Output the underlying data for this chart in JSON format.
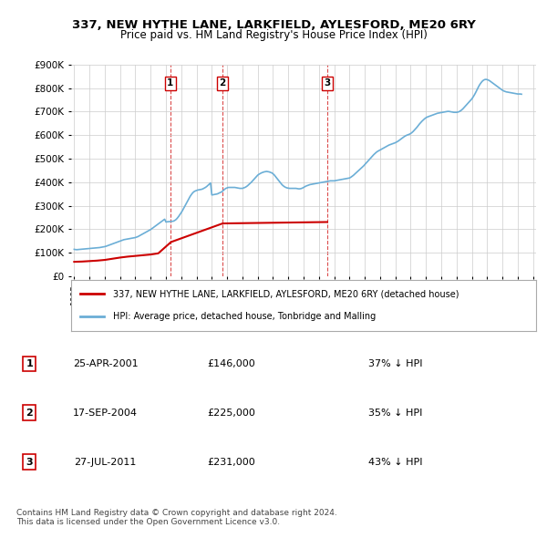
{
  "title": "337, NEW HYTHE LANE, LARKFIELD, AYLESFORD, ME20 6RY",
  "subtitle": "Price paid vs. HM Land Registry's House Price Index (HPI)",
  "hpi_label": "HPI: Average price, detached house, Tonbridge and Malling",
  "property_label": "337, NEW HYTHE LANE, LARKFIELD, AYLESFORD, ME20 6RY (detached house)",
  "hpi_color": "#6baed6",
  "property_color": "#cc0000",
  "vline_color": "#cc0000",
  "background_color": "#ffffff",
  "grid_color": "#cccccc",
  "ylim": [
    0,
    900000
  ],
  "yticks": [
    0,
    100000,
    200000,
    300000,
    400000,
    500000,
    600000,
    700000,
    800000,
    900000
  ],
  "ytick_labels": [
    "£0",
    "£100K",
    "£200K",
    "£300K",
    "£400K",
    "£500K",
    "£600K",
    "£700K",
    "£800K",
    "£900K"
  ],
  "sale_dates": [
    "2001-04-25",
    "2004-09-17",
    "2011-07-27"
  ],
  "sale_prices": [
    146000,
    225000,
    231000
  ],
  "sale_labels": [
    "1",
    "2",
    "3"
  ],
  "sale_info": [
    {
      "label": "1",
      "date": "25-APR-2001",
      "price": "£146,000",
      "pct": "37% ↓ HPI"
    },
    {
      "label": "2",
      "date": "17-SEP-2004",
      "price": "£225,000",
      "pct": "35% ↓ HPI"
    },
    {
      "label": "3",
      "date": "27-JUL-2011",
      "price": "£231,000",
      "pct": "43% ↓ HPI"
    }
  ],
  "footer": "Contains HM Land Registry data © Crown copyright and database right 2024.\nThis data is licensed under the Open Government Licence v3.0.",
  "hpi_years": [
    1995.0,
    1995.083,
    1995.167,
    1995.25,
    1995.333,
    1995.417,
    1995.5,
    1995.583,
    1995.667,
    1995.75,
    1995.833,
    1995.917,
    1996.0,
    1996.083,
    1996.167,
    1996.25,
    1996.333,
    1996.417,
    1996.5,
    1996.583,
    1996.667,
    1996.75,
    1996.833,
    1996.917,
    1997.0,
    1997.083,
    1997.167,
    1997.25,
    1997.333,
    1997.417,
    1997.5,
    1997.583,
    1997.667,
    1997.75,
    1997.833,
    1997.917,
    1998.0,
    1998.083,
    1998.167,
    1998.25,
    1998.333,
    1998.417,
    1998.5,
    1998.583,
    1998.667,
    1998.75,
    1998.833,
    1998.917,
    1999.0,
    1999.083,
    1999.167,
    1999.25,
    1999.333,
    1999.417,
    1999.5,
    1999.583,
    1999.667,
    1999.75,
    1999.833,
    1999.917,
    2000.0,
    2000.083,
    2000.167,
    2000.25,
    2000.333,
    2000.417,
    2000.5,
    2000.583,
    2000.667,
    2000.75,
    2000.833,
    2000.917,
    2001.0,
    2001.083,
    2001.167,
    2001.25,
    2001.333,
    2001.417,
    2001.5,
    2001.583,
    2001.667,
    2001.75,
    2001.833,
    2001.917,
    2002.0,
    2002.083,
    2002.167,
    2002.25,
    2002.333,
    2002.417,
    2002.5,
    2002.583,
    2002.667,
    2002.75,
    2002.833,
    2002.917,
    2003.0,
    2003.083,
    2003.167,
    2003.25,
    2003.333,
    2003.417,
    2003.5,
    2003.583,
    2003.667,
    2003.75,
    2003.833,
    2003.917,
    2004.0,
    2004.083,
    2004.167,
    2004.25,
    2004.333,
    2004.417,
    2004.5,
    2004.583,
    2004.667,
    2004.75,
    2004.833,
    2004.917,
    2005.0,
    2005.083,
    2005.167,
    2005.25,
    2005.333,
    2005.417,
    2005.5,
    2005.583,
    2005.667,
    2005.75,
    2005.833,
    2005.917,
    2006.0,
    2006.083,
    2006.167,
    2006.25,
    2006.333,
    2006.417,
    2006.5,
    2006.583,
    2006.667,
    2006.75,
    2006.833,
    2006.917,
    2007.0,
    2007.083,
    2007.167,
    2007.25,
    2007.333,
    2007.417,
    2007.5,
    2007.583,
    2007.667,
    2007.75,
    2007.833,
    2007.917,
    2008.0,
    2008.083,
    2008.167,
    2008.25,
    2008.333,
    2008.417,
    2008.5,
    2008.583,
    2008.667,
    2008.75,
    2008.833,
    2008.917,
    2009.0,
    2009.083,
    2009.167,
    2009.25,
    2009.333,
    2009.417,
    2009.5,
    2009.583,
    2009.667,
    2009.75,
    2009.833,
    2009.917,
    2010.0,
    2010.083,
    2010.167,
    2010.25,
    2010.333,
    2010.417,
    2010.5,
    2010.583,
    2010.667,
    2010.75,
    2010.833,
    2010.917,
    2011.0,
    2011.083,
    2011.167,
    2011.25,
    2011.333,
    2011.417,
    2011.5,
    2011.583,
    2011.667,
    2011.75,
    2011.833,
    2011.917,
    2012.0,
    2012.083,
    2012.167,
    2012.25,
    2012.333,
    2012.417,
    2012.5,
    2012.583,
    2012.667,
    2012.75,
    2012.833,
    2012.917,
    2013.0,
    2013.083,
    2013.167,
    2013.25,
    2013.333,
    2013.417,
    2013.5,
    2013.583,
    2013.667,
    2013.75,
    2013.833,
    2013.917,
    2014.0,
    2014.083,
    2014.167,
    2014.25,
    2014.333,
    2014.417,
    2014.5,
    2014.583,
    2014.667,
    2014.75,
    2014.833,
    2014.917,
    2015.0,
    2015.083,
    2015.167,
    2015.25,
    2015.333,
    2015.417,
    2015.5,
    2015.583,
    2015.667,
    2015.75,
    2015.833,
    2015.917,
    2016.0,
    2016.083,
    2016.167,
    2016.25,
    2016.333,
    2016.417,
    2016.5,
    2016.583,
    2016.667,
    2016.75,
    2016.833,
    2016.917,
    2017.0,
    2017.083,
    2017.167,
    2017.25,
    2017.333,
    2017.417,
    2017.5,
    2017.583,
    2017.667,
    2017.75,
    2017.833,
    2017.917,
    2018.0,
    2018.083,
    2018.167,
    2018.25,
    2018.333,
    2018.417,
    2018.5,
    2018.583,
    2018.667,
    2018.75,
    2018.833,
    2018.917,
    2019.0,
    2019.083,
    2019.167,
    2019.25,
    2019.333,
    2019.417,
    2019.5,
    2019.583,
    2019.667,
    2019.75,
    2019.833,
    2019.917,
    2020.0,
    2020.083,
    2020.167,
    2020.25,
    2020.333,
    2020.417,
    2020.5,
    2020.583,
    2020.667,
    2020.75,
    2020.833,
    2020.917,
    2021.0,
    2021.083,
    2021.167,
    2021.25,
    2021.333,
    2021.417,
    2021.5,
    2021.583,
    2021.667,
    2021.75,
    2021.833,
    2021.917,
    2022.0,
    2022.083,
    2022.167,
    2022.25,
    2022.333,
    2022.417,
    2022.5,
    2022.583,
    2022.667,
    2022.75,
    2022.833,
    2022.917,
    2023.0,
    2023.083,
    2023.167,
    2023.25,
    2023.333,
    2023.417,
    2023.5,
    2023.583,
    2023.667,
    2023.75,
    2023.833,
    2023.917,
    2024.0,
    2024.083,
    2024.167,
    2024.25
  ],
  "hpi_values": [
    115000,
    114000,
    113500,
    114000,
    114500,
    115000,
    115500,
    116000,
    116500,
    117000,
    117500,
    118000,
    118500,
    119000,
    119500,
    120000,
    120500,
    121000,
    121500,
    122000,
    122500,
    123500,
    124500,
    125500,
    126500,
    128000,
    130000,
    132000,
    134000,
    136000,
    138000,
    140000,
    142000,
    144000,
    146000,
    148000,
    150000,
    152000,
    154000,
    156000,
    157000,
    158000,
    159000,
    160000,
    161000,
    162000,
    163000,
    164000,
    165000,
    167000,
    169000,
    172000,
    175000,
    178000,
    181000,
    184000,
    187000,
    190000,
    193000,
    196000,
    199000,
    203000,
    207000,
    211000,
    215000,
    219000,
    223000,
    227000,
    231000,
    235000,
    239000,
    243000,
    231000,
    232000,
    232500,
    233000,
    233500,
    234000,
    235000,
    238000,
    242000,
    248000,
    255000,
    263000,
    271000,
    280000,
    290000,
    300000,
    310000,
    320000,
    330000,
    340000,
    348000,
    355000,
    360000,
    363000,
    365000,
    367000,
    368000,
    369000,
    370000,
    372000,
    375000,
    378000,
    382000,
    387000,
    392000,
    397000,
    346000,
    347000,
    348000,
    349000,
    350000,
    352000,
    355000,
    357000,
    360000,
    365000,
    370000,
    374000,
    376000,
    378000,
    378000,
    378000,
    378000,
    378000,
    378000,
    377000,
    376000,
    375000,
    374000,
    374000,
    374000,
    376000,
    378000,
    381000,
    385000,
    390000,
    395000,
    400000,
    406000,
    412000,
    418000,
    424000,
    430000,
    434000,
    437000,
    440000,
    442000,
    444000,
    445000,
    446000,
    445000,
    444000,
    442000,
    440000,
    436000,
    431000,
    424000,
    417000,
    410000,
    403000,
    396000,
    390000,
    385000,
    381000,
    378000,
    376000,
    375000,
    374000,
    374000,
    374000,
    374000,
    374000,
    374000,
    373000,
    372000,
    372000,
    373000,
    375000,
    378000,
    381000,
    384000,
    386000,
    388000,
    390000,
    391000,
    392000,
    393000,
    394000,
    395000,
    396000,
    397000,
    398000,
    399000,
    400000,
    401000,
    402000,
    403000,
    404000,
    405000,
    406000,
    406000,
    406000,
    406000,
    407000,
    408000,
    409000,
    410000,
    411000,
    412000,
    413000,
    414000,
    415000,
    416000,
    417000,
    418000,
    421000,
    425000,
    429000,
    434000,
    439000,
    444000,
    449000,
    454000,
    459000,
    464000,
    469000,
    475000,
    481000,
    487000,
    493000,
    499000,
    505000,
    511000,
    517000,
    522000,
    527000,
    531000,
    534000,
    537000,
    540000,
    543000,
    546000,
    549000,
    552000,
    555000,
    558000,
    560000,
    562000,
    564000,
    566000,
    568000,
    571000,
    574000,
    578000,
    582000,
    586000,
    590000,
    594000,
    597000,
    600000,
    602000,
    604000,
    607000,
    611000,
    616000,
    622000,
    628000,
    634000,
    641000,
    648000,
    654000,
    660000,
    665000,
    670000,
    674000,
    677000,
    679000,
    681000,
    683000,
    685000,
    687000,
    689000,
    691000,
    693000,
    694000,
    695000,
    696000,
    697000,
    698000,
    699000,
    700000,
    701000,
    701000,
    700000,
    699000,
    698000,
    697000,
    697000,
    697000,
    698000,
    700000,
    703000,
    707000,
    712000,
    718000,
    724000,
    730000,
    736000,
    742000,
    748000,
    754000,
    762000,
    771000,
    781000,
    792000,
    803000,
    813000,
    821000,
    828000,
    833000,
    836000,
    837000,
    836000,
    834000,
    831000,
    827000,
    823000,
    819000,
    815000,
    811000,
    807000,
    803000,
    799000,
    795000,
    791000,
    788000,
    786000,
    784000,
    783000,
    782000,
    781000,
    780000,
    779000,
    778000,
    777000,
    776000,
    775000,
    775000,
    775000,
    774000
  ],
  "prop_years": [
    1995.0,
    1995.5,
    1996.0,
    1996.5,
    1997.0,
    1997.5,
    1998.0,
    1998.5,
    1999.0,
    1999.5,
    2000.0,
    2000.5,
    2001.333,
    2004.708,
    2011.542
  ],
  "prop_values": [
    62000,
    63000,
    65000,
    67000,
    70000,
    75000,
    80000,
    84000,
    87000,
    90000,
    93000,
    98000,
    146000,
    225000,
    231000
  ]
}
